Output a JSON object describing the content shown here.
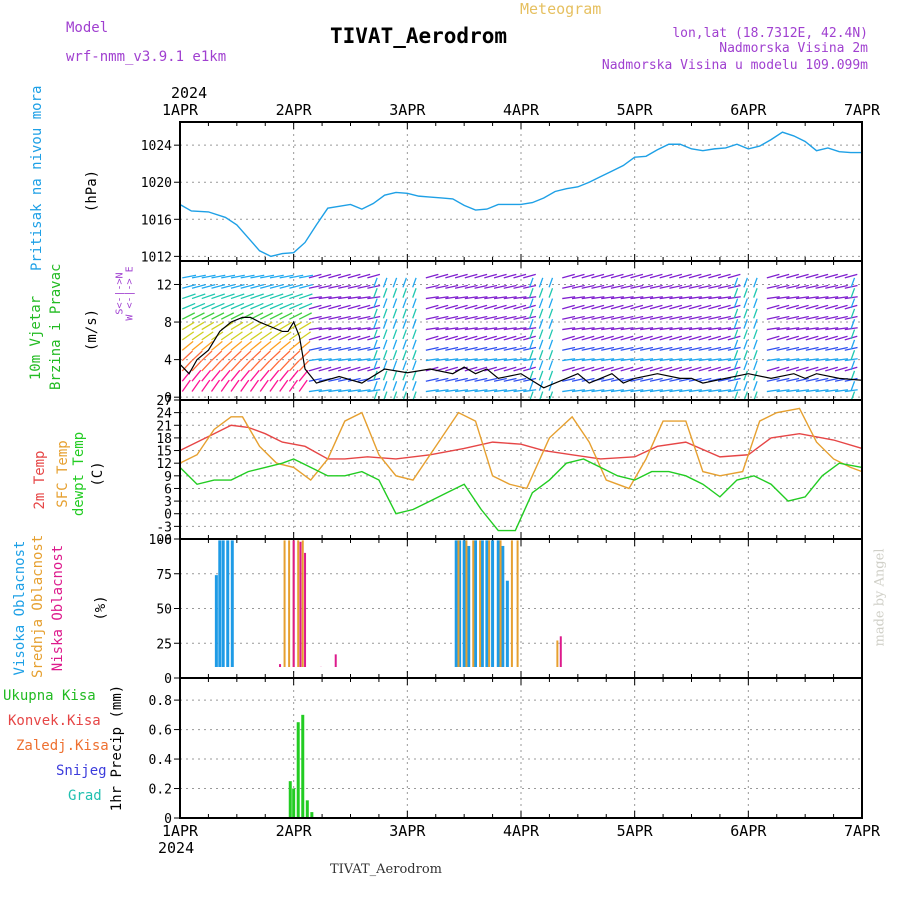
{
  "header": {
    "model_label": "Model",
    "model_name": "wrf-nmm_v3.9.1 e1km",
    "title": "TIVAT_Aerodrom",
    "subtitle": "Meteogram",
    "lonlat": "lon,lat (18.7312E, 42.4N)",
    "elevation": "Nadmorska Visina 2m",
    "model_elevation": "Nadmorska Visina u modelu 109.099m",
    "year_top": "2024",
    "year_bottom": "2024",
    "footer_station": "TIVAT_Aerodrom",
    "credit": "made by Angel"
  },
  "compass": {
    "top": "N",
    "bottom": "S",
    "left": "W",
    "right": "E",
    "row1": "W  <-|->  E",
    "row2": "S<-|->N"
  },
  "colors": {
    "pressure": "#1ea0e6",
    "wind_label": "#22bb22",
    "temp2m": "#e64646",
    "sfc": "#e6a030",
    "dewpt": "#22cc22",
    "high_cloud": "#1e9be6",
    "mid_cloud": "#e6a030",
    "low_cloud": "#dd1a8c",
    "purple": "#a040d0",
    "black_line": "#000000"
  },
  "chart_data": [
    {
      "type": "line",
      "title": "Pritisak na nivou mora",
      "ylabel": "(hPa)",
      "x_categories": [
        "1APR",
        "2APR",
        "3APR",
        "4APR",
        "5APR",
        "6APR",
        "7APR"
      ],
      "ylim": [
        1011.5,
        1026.5
      ],
      "yticks": [
        1012,
        1016,
        1020,
        1024
      ],
      "series": [
        {
          "name": "Pritisak na nivou mora",
          "x": [
            0,
            0.1,
            0.25,
            0.4,
            0.5,
            0.6,
            0.7,
            0.8,
            0.9,
            1.0,
            1.1,
            1.2,
            1.3,
            1.4,
            1.5,
            1.6,
            1.7,
            1.8,
            1.9,
            2.0,
            2.1,
            2.2,
            2.3,
            2.4,
            2.5,
            2.6,
            2.7,
            2.8,
            2.9,
            3.0,
            3.1,
            3.2,
            3.3,
            3.4,
            3.5,
            3.6,
            3.7,
            3.8,
            3.9,
            4.0,
            4.1,
            4.2,
            4.3,
            4.4,
            4.5,
            4.6,
            4.7,
            4.8,
            4.9,
            5.0,
            5.1,
            5.2,
            5.3,
            5.4,
            5.5,
            5.6,
            5.7,
            5.8,
            5.9,
            6.0
          ],
          "values": [
            1017.6,
            1016.9,
            1016.8,
            1016.2,
            1015.4,
            1014.0,
            1012.6,
            1012.0,
            1012.3,
            1012.4,
            1013.5,
            1015.4,
            1017.2,
            1017.4,
            1017.6,
            1017.1,
            1017.7,
            1018.6,
            1018.9,
            1018.8,
            1018.5,
            1018.4,
            1018.3,
            1018.2,
            1017.5,
            1017.0,
            1017.1,
            1017.6,
            1017.6,
            1017.6,
            1017.8,
            1018.3,
            1019.0,
            1019.3,
            1019.5,
            1020.0,
            1020.6,
            1021.2,
            1021.8,
            1022.7,
            1022.8,
            1023.5,
            1024.1,
            1024.1,
            1023.6,
            1023.4,
            1023.6,
            1023.7,
            1024.1,
            1023.6,
            1023.9,
            1024.6,
            1025.4,
            1025.0,
            1024.4,
            1023.4,
            1023.7,
            1023.3,
            1023.2,
            1023.2
          ]
        }
      ]
    },
    {
      "type": "line",
      "title": "10m Vjetar Brzina i Pravac",
      "ylabel": "(m/s)",
      "ylim": [
        -0.3,
        14.5
      ],
      "yticks": [
        0,
        4,
        8,
        12
      ],
      "series": [
        {
          "name": "10m Vjetar Brzina",
          "x": [
            0,
            0.08,
            0.15,
            0.25,
            0.35,
            0.45,
            0.55,
            0.62,
            0.7,
            0.8,
            0.9,
            0.95,
            1.0,
            1.05,
            1.1,
            1.2,
            1.4,
            1.6,
            1.8,
            2.0,
            2.2,
            2.4,
            2.5,
            2.6,
            2.7,
            2.8,
            3.0,
            3.2,
            3.3,
            3.4,
            3.5,
            3.6,
            3.8,
            3.9,
            4.0,
            4.2,
            4.4,
            4.5,
            4.6,
            4.8,
            5.0,
            5.2,
            5.4,
            5.5,
            5.6,
            5.8,
            6.0
          ],
          "values": [
            3.5,
            2.5,
            4.0,
            5.0,
            7.0,
            8.0,
            8.5,
            8.5,
            8.0,
            7.5,
            7.0,
            7.0,
            8.0,
            6.5,
            3.0,
            1.5,
            2.2,
            1.5,
            3.0,
            2.6,
            3.0,
            2.5,
            3.2,
            2.5,
            3.0,
            2.0,
            2.5,
            1.0,
            1.5,
            2.0,
            2.5,
            1.5,
            2.5,
            1.5,
            2.0,
            2.5,
            2.0,
            2.0,
            1.5,
            2.0,
            2.5,
            2.0,
            2.5,
            2.0,
            2.5,
            2.0,
            1.8
          ]
        }
      ]
    },
    {
      "type": "line",
      "title": "2m Temp / SFC Temp / dewpt Temp",
      "ylabel": "(C)",
      "ylim": [
        -6,
        27
      ],
      "yticks": [
        -6,
        -3,
        0,
        3,
        6,
        9,
        12,
        15,
        18,
        21,
        24,
        27
      ],
      "series": [
        {
          "name": "2m Temp",
          "x": [
            0,
            0.15,
            0.3,
            0.45,
            0.6,
            0.75,
            0.9,
            1.1,
            1.3,
            1.45,
            1.65,
            1.9,
            2.2,
            2.5,
            2.75,
            3.0,
            3.2,
            3.45,
            3.7,
            4.0,
            4.2,
            4.45,
            4.75,
            5.0,
            5.2,
            5.45,
            5.75,
            6.0
          ],
          "values": [
            15,
            17,
            19,
            21,
            20.5,
            19,
            17,
            16,
            13,
            13,
            13.5,
            13,
            14,
            15.5,
            17,
            16.5,
            15,
            14,
            13,
            13.5,
            16,
            17,
            13.5,
            14,
            18,
            19,
            17.5,
            15.5
          ]
        },
        {
          "name": "SFC Temp",
          "x": [
            0,
            0.15,
            0.3,
            0.45,
            0.55,
            0.7,
            0.85,
            1.0,
            1.15,
            1.3,
            1.45,
            1.6,
            1.75,
            1.9,
            2.05,
            2.25,
            2.45,
            2.6,
            2.75,
            2.9,
            3.05,
            3.25,
            3.45,
            3.6,
            3.75,
            3.95,
            4.1,
            4.25,
            4.45,
            4.6,
            4.75,
            4.95,
            5.1,
            5.25,
            5.45,
            5.6,
            5.75,
            5.9,
            6.0
          ],
          "values": [
            12,
            14,
            20,
            23,
            23,
            16,
            12,
            11,
            8,
            13,
            22,
            24,
            14,
            9,
            8,
            16,
            24,
            22,
            9,
            7,
            6,
            18,
            23,
            17,
            8,
            6,
            13,
            22,
            22,
            10,
            9,
            10,
            22,
            24,
            25,
            17,
            13,
            11,
            10
          ]
        },
        {
          "name": "dewpt Temp",
          "x": [
            0,
            0.15,
            0.3,
            0.45,
            0.6,
            0.75,
            0.9,
            1.0,
            1.15,
            1.3,
            1.45,
            1.6,
            1.75,
            1.9,
            2.05,
            2.2,
            2.35,
            2.5,
            2.65,
            2.8,
            2.95,
            3.1,
            3.25,
            3.4,
            3.55,
            3.7,
            3.85,
            4.0,
            4.15,
            4.3,
            4.45,
            4.6,
            4.75,
            4.9,
            5.05,
            5.2,
            5.35,
            5.5,
            5.65,
            5.8,
            6.0
          ],
          "values": [
            11,
            7,
            8,
            8,
            10,
            11,
            12,
            13,
            11,
            9,
            9,
            10,
            8,
            0,
            1,
            3,
            5,
            7,
            1,
            -4,
            -4,
            5,
            8,
            12,
            13,
            11,
            9,
            8,
            10,
            10,
            9,
            7,
            4,
            8,
            9,
            7,
            3,
            4,
            9,
            12,
            11
          ]
        }
      ]
    },
    {
      "type": "bar",
      "title": "Visoka / Srednja / Niska Oblacnost",
      "ylabel": "(%)",
      "ylim": [
        0,
        100
      ],
      "yticks": [
        0,
        25,
        50,
        75,
        100
      ],
      "series": [
        {
          "name": "Visoka Oblacnost",
          "x": [
            0.32,
            0.35,
            0.38,
            0.42,
            0.46,
            2.43,
            2.46,
            2.5,
            2.54,
            2.6,
            2.66,
            2.7,
            2.75,
            2.8,
            2.84,
            2.88
          ],
          "values": [
            74,
            99,
            99,
            99,
            99,
            99,
            99,
            99,
            95,
            99,
            99,
            99,
            99,
            99,
            95,
            70
          ]
        },
        {
          "name": "Srednja Oblacnost",
          "x": [
            0.92,
            0.96,
            1.0,
            1.04,
            1.08,
            2.45,
            2.52,
            2.58,
            2.64,
            2.72,
            2.82,
            2.92,
            2.97,
            3.32
          ],
          "values": [
            99,
            99,
            99,
            99,
            99,
            99,
            99,
            99,
            99,
            99,
            99,
            99,
            99,
            27
          ]
        },
        {
          "name": "Niska Oblacnost",
          "x": [
            0.88,
            1.0,
            1.06,
            1.1,
            1.24,
            1.37,
            1.55,
            1.65,
            3.35
          ],
          "values": [
            10,
            99,
            98,
            90,
            8,
            17,
            3,
            1,
            30
          ]
        }
      ]
    },
    {
      "type": "bar",
      "title": "1hr Precip",
      "ylabel": "1hr Precip (mm)",
      "ylim": [
        0,
        0.95
      ],
      "yticks": [
        0,
        0.2,
        0.4,
        0.6,
        0.8
      ],
      "series": [
        {
          "name": "Ukupna Kisa",
          "x": [
            0.97,
            1.0,
            1.04,
            1.08,
            1.12,
            1.16
          ],
          "values": [
            0.25,
            0.2,
            0.65,
            0.7,
            0.12,
            0.04
          ]
        },
        {
          "name": "Konvek.Kisa",
          "x": [],
          "values": []
        },
        {
          "name": "Zaledj.Kisa",
          "x": [],
          "values": []
        },
        {
          "name": "Snijeg",
          "x": [],
          "values": []
        },
        {
          "name": "Grad",
          "x": [],
          "values": []
        }
      ]
    }
  ],
  "labels": {
    "pressure_title": "Pritisak na nivou mora",
    "pressure_unit": "(hPa)",
    "wind_title1": "10m Vjetar",
    "wind_title2": "Brzina i Pravac",
    "wind_unit": "(m/s)",
    "temp_2m": "2m Temp",
    "temp_sfc": "SFC Temp",
    "temp_dew": "dewpt Temp",
    "temp_unit": "(C)",
    "cloud_high": "Visoka Oblacnost",
    "cloud_mid": "Srednja Oblacnost",
    "cloud_low": "Niska Oblacnost",
    "cloud_unit": "(%)",
    "precip_unit": "1hr Precip (mm)",
    "legend_total": "Ukupna Kisa",
    "legend_conv": "Konvek.Kisa",
    "legend_frz": "Zaledj.Kisa",
    "legend_snow": "Snijeg",
    "legend_hail": "Grad"
  }
}
